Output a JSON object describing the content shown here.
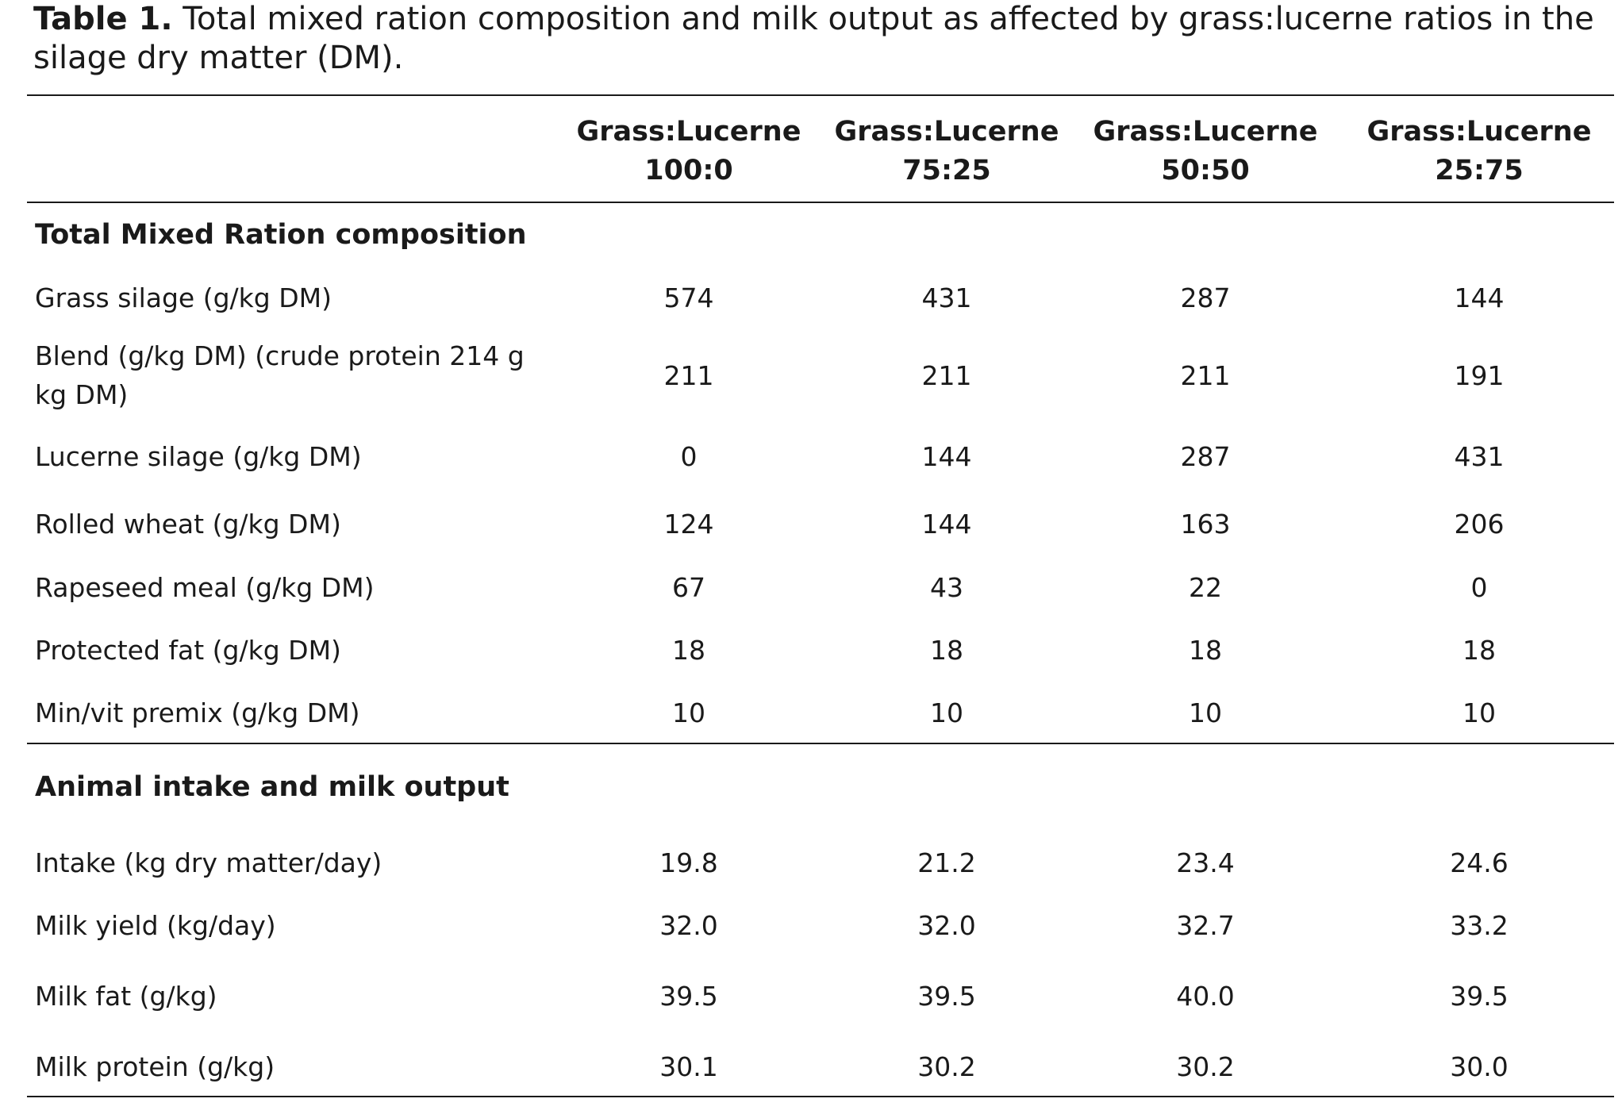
{
  "caption": {
    "label": "Table 1.",
    "text": " Total mixed ration composition and milk output as affected by grass:lucerne ratios in the silage dry matter (DM)."
  },
  "columns": [
    {
      "line1": "Grass:Lucerne",
      "line2": "100:0"
    },
    {
      "line1": "Grass:Lucerne",
      "line2": "75:25"
    },
    {
      "line1": "Grass:Lucerne",
      "line2": "50:50"
    },
    {
      "line1": "Grass:Lucerne",
      "line2": "25:75"
    }
  ],
  "sections": [
    {
      "title": "Total Mixed Ration composition",
      "rows": [
        {
          "label": "Grass silage (g/kg DM)",
          "values": [
            "574",
            "431",
            "287",
            "144"
          ]
        },
        {
          "label": "Blend (g/kg DM) (crude protein 214 g kg DM)",
          "values": [
            "211",
            "211",
            "211",
            "191"
          ]
        },
        {
          "label": "Lucerne silage (g/kg DM)",
          "values": [
            "0",
            "144",
            "287",
            "431"
          ]
        },
        {
          "label": "Rolled wheat (g/kg DM)",
          "values": [
            "124",
            "144",
            "163",
            "206"
          ]
        },
        {
          "label": "Rapeseed meal (g/kg DM)",
          "values": [
            "67",
            "43",
            "22",
            "0"
          ]
        },
        {
          "label": "Protected fat (g/kg DM)",
          "values": [
            "18",
            "18",
            "18",
            "18"
          ]
        },
        {
          "label": "Min/vit premix (g/kg DM)",
          "values": [
            "10",
            "10",
            "10",
            "10"
          ]
        }
      ]
    },
    {
      "title": "Animal intake and milk output",
      "rows": [
        {
          "label": "Intake (kg dry matter/day)",
          "values": [
            "19.8",
            "21.2",
            "23.4",
            "24.6"
          ]
        },
        {
          "label": "Milk yield (kg/day)",
          "values": [
            "32.0",
            "32.0",
            "32.7",
            "33.2"
          ]
        },
        {
          "label": "Milk fat (g/kg)",
          "values": [
            "39.5",
            "39.5",
            "40.0",
            "39.5"
          ]
        },
        {
          "label": "Milk protein (g/kg)",
          "values": [
            "30.1",
            "30.2",
            "30.2",
            "30.0"
          ]
        }
      ]
    }
  ]
}
